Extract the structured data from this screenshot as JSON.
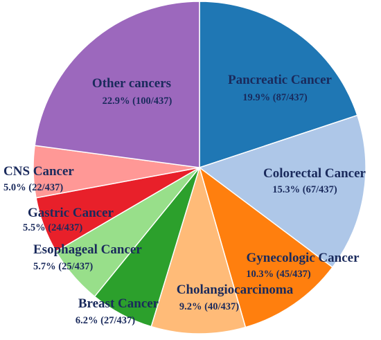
{
  "chart_data": {
    "type": "pie",
    "title": "",
    "slices": [
      {
        "label": "Pancreatic Cancer",
        "value_text": "19.9% (87/437)",
        "count": 87,
        "percent": 19.9,
        "color": "#1f77b4"
      },
      {
        "label": "Colorectal Cancer",
        "value_text": "15.3% (67/437)",
        "count": 67,
        "percent": 15.3,
        "color": "#aec7e8"
      },
      {
        "label": "Gynecologic Cancer",
        "value_text": "10.3% (45/437)",
        "count": 45,
        "percent": 10.3,
        "color": "#ff7f0e"
      },
      {
        "label": "Cholangiocarcinoma",
        "value_text": "9.2% (40/437)",
        "count": 40,
        "percent": 9.2,
        "color": "#ffbb78"
      },
      {
        "label": "Breast Cancer",
        "value_text": "6.2% (27/437)",
        "count": 27,
        "percent": 6.2,
        "color": "#2ca02c"
      },
      {
        "label": "Esophageal Cancer",
        "value_text": "5.7% (25/437)",
        "count": 25,
        "percent": 5.7,
        "color": "#98df8a"
      },
      {
        "label": "Gastric Cancer",
        "value_text": "5.5% (24/437)",
        "count": 24,
        "percent": 5.5,
        "color": "#e8202a"
      },
      {
        "label": "CNS Cancer",
        "value_text": "5.0% (22/437)",
        "count": 22,
        "percent": 5.0,
        "color": "#ff9896"
      },
      {
        "label": "Other cancers",
        "value_text": "22.9% (100/437)",
        "count": 100,
        "percent": 22.9,
        "color": "#9c68bd"
      }
    ]
  }
}
